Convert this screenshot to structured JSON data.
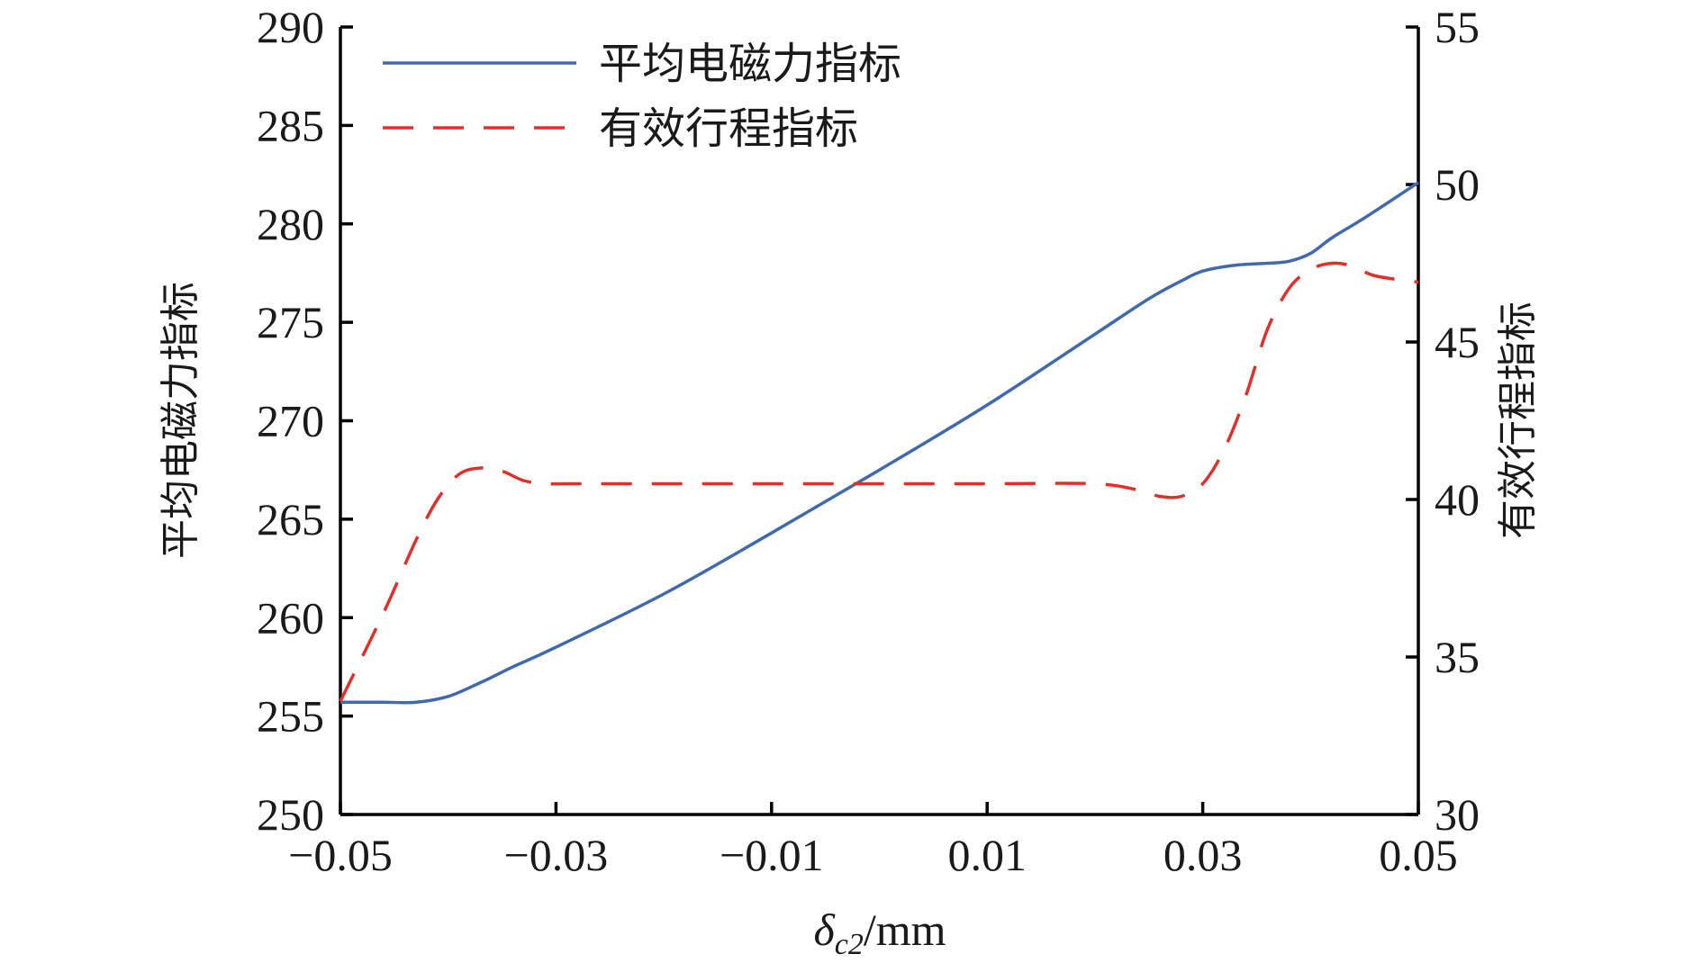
{
  "chart_data": {
    "type": "line",
    "xlabel": {
      "symbol": "δ",
      "subscript": "c2",
      "unit": "/mm"
    },
    "ylabel_left": "平均电磁力指标",
    "ylabel_right": "有效行程指标",
    "xlim": [
      -0.05,
      0.05
    ],
    "ylim_left": [
      250,
      290
    ],
    "ylim_right": [
      30,
      55
    ],
    "x_ticks": [
      -0.05,
      -0.03,
      -0.01,
      0.01,
      0.03,
      0.05
    ],
    "x_tick_labels": [
      "−0.05",
      "−0.03",
      "−0.01",
      "0.01",
      "0.03",
      "0.05"
    ],
    "y_left_ticks": [
      250,
      255,
      260,
      265,
      270,
      275,
      280,
      285,
      290
    ],
    "y_left_tick_labels": [
      "250",
      "255",
      "260",
      "265",
      "270",
      "275",
      "280",
      "285",
      "290"
    ],
    "y_right_ticks": [
      30,
      35,
      40,
      45,
      50,
      55
    ],
    "y_right_tick_labels": [
      "30",
      "35",
      "40",
      "45",
      "50",
      "55"
    ],
    "grid": false,
    "legend_position": "top-left",
    "series": [
      {
        "name": "平均电磁力指标",
        "axis": "left",
        "color": "#4169ae",
        "style": "solid",
        "x": [
          -0.05,
          -0.046,
          -0.043,
          -0.04,
          -0.037,
          -0.034,
          -0.03,
          -0.02,
          -0.01,
          0.0,
          0.01,
          0.02,
          0.025,
          0.028,
          0.03,
          0.033,
          0.036,
          0.038,
          0.04,
          0.042,
          0.045,
          0.05
        ],
        "y": [
          255.7,
          255.7,
          255.7,
          256.0,
          256.7,
          257.5,
          258.5,
          261.2,
          264.3,
          267.5,
          270.8,
          274.4,
          276.2,
          277.1,
          277.6,
          277.9,
          278.0,
          278.1,
          278.5,
          279.3,
          280.3,
          282.1
        ]
      },
      {
        "name": "有效行程指标",
        "axis": "right",
        "color": "#e0302a",
        "style": "dashed",
        "x": [
          -0.05,
          -0.046,
          -0.043,
          -0.041,
          -0.039,
          -0.037,
          -0.035,
          -0.033,
          -0.031,
          -0.029,
          -0.02,
          -0.01,
          0.0,
          0.01,
          0.02,
          0.024,
          0.026,
          0.028,
          0.03,
          0.032,
          0.034,
          0.036,
          0.038,
          0.04,
          0.042,
          0.044,
          0.046,
          0.05
        ],
        "y": [
          33.6,
          36.4,
          38.7,
          40.0,
          40.8,
          41.0,
          40.9,
          40.6,
          40.5,
          40.5,
          40.5,
          40.5,
          40.5,
          40.5,
          40.5,
          40.3,
          40.1,
          40.1,
          40.5,
          41.6,
          43.3,
          45.4,
          46.7,
          47.3,
          47.5,
          47.4,
          47.1,
          46.9
        ]
      }
    ]
  }
}
